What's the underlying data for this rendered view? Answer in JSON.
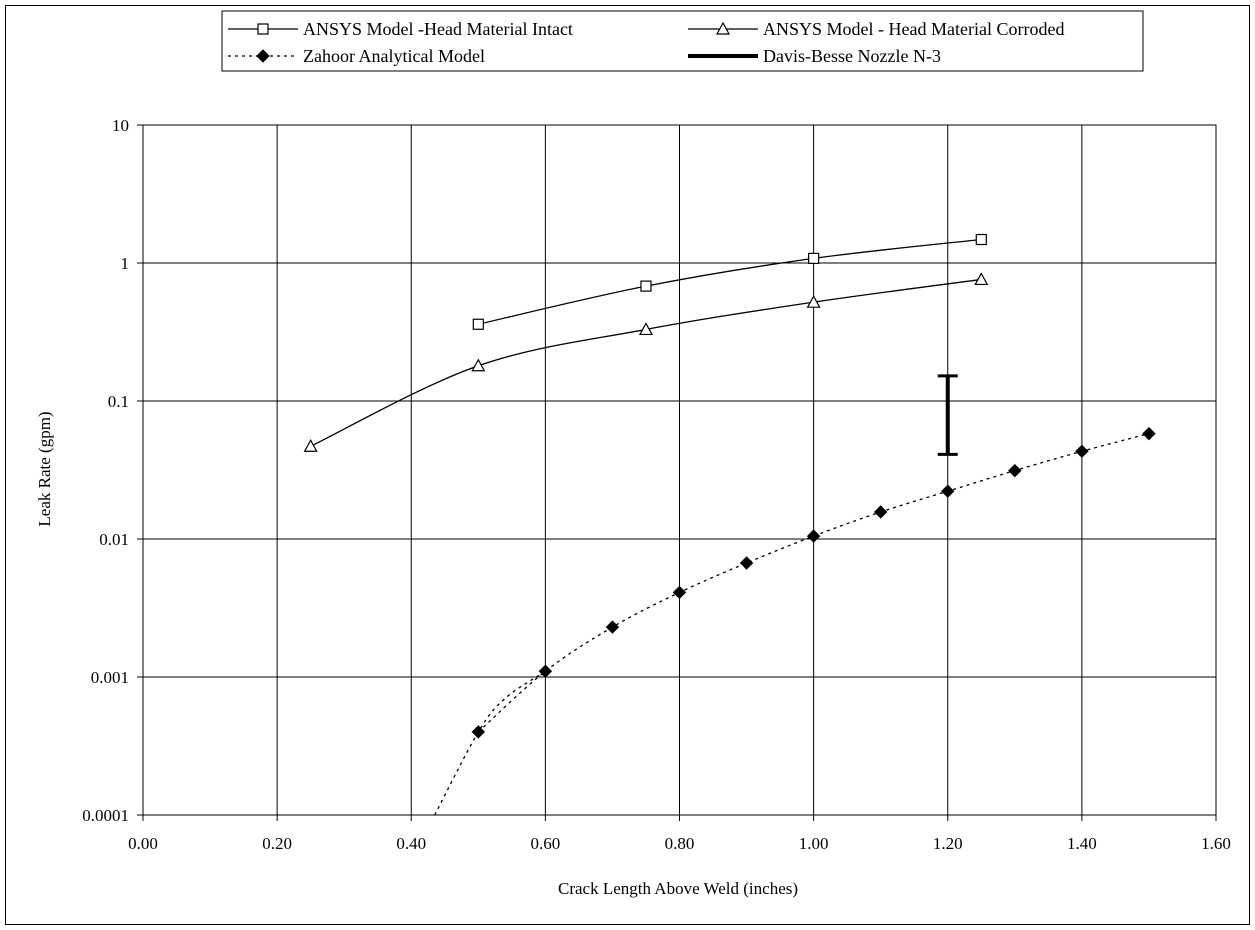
{
  "chart_data": {
    "type": "line",
    "title": "",
    "xlabel": "Crack Length Above Weld (inches)",
    "ylabel": "Leak Rate (gpm)",
    "xlim": [
      0,
      1.6
    ],
    "ylim": [
      0.0001,
      10
    ],
    "y_scale": "log",
    "grid": true,
    "legend_position": "top",
    "x_ticks": [
      "0.00",
      "0.20",
      "0.40",
      "0.60",
      "0.80",
      "1.00",
      "1.20",
      "1.40",
      "1.60"
    ],
    "y_ticks": [
      "0.0001",
      "0.001",
      "0.01",
      "0.1",
      "1",
      "10"
    ],
    "series": [
      {
        "name": "ANSYS Model -Head Material Intact",
        "marker": "open-square",
        "line": "solid",
        "x": [
          0.5,
          0.75,
          1.0,
          1.25
        ],
        "y": [
          0.36,
          0.68,
          1.08,
          1.48
        ]
      },
      {
        "name": "ANSYS Model - Head Material Corroded",
        "marker": "open-triangle",
        "line": "solid",
        "x": [
          0.25,
          0.5,
          0.75,
          1.0,
          1.25
        ],
        "y": [
          0.047,
          0.18,
          0.33,
          0.52,
          0.76
        ]
      },
      {
        "name": "Zahoor Analytical Model",
        "marker": "filled-diamond",
        "line": "dotted",
        "x": [
          0.5,
          0.6,
          0.7,
          0.8,
          0.9,
          1.0,
          1.1,
          1.2,
          1.3,
          1.4,
          1.5
        ],
        "y": [
          0.0004,
          0.0011,
          0.0023,
          0.0041,
          0.0067,
          0.0105,
          0.0157,
          0.0222,
          0.0313,
          0.0432,
          0.058
        ],
        "extension": {
          "x": [
            0.435,
            0.5,
            0.54,
            0.6
          ],
          "y": [
            0.0001,
            0.0004,
            0.0007,
            0.0011
          ]
        }
      },
      {
        "name": "Davis-Besse Nozzle N-3",
        "marker": "none",
        "line": "thick-solid",
        "range": {
          "x": 1.2,
          "y_low": 0.041,
          "y_high": 0.152
        }
      }
    ]
  }
}
